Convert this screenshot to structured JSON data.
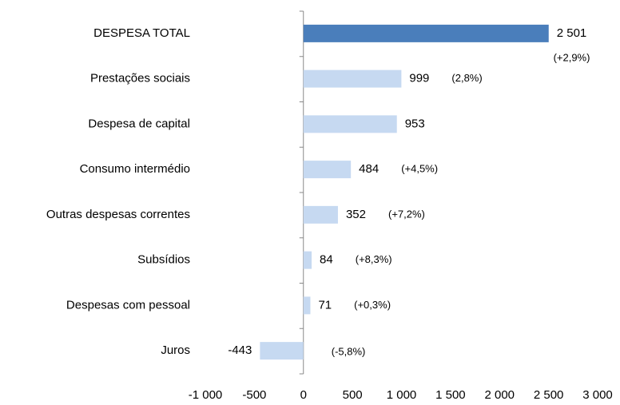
{
  "chart_data": {
    "type": "hbar",
    "categories": [
      "DESPESA TOTAL",
      "Prestações sociais",
      "Despesa de capital",
      "Consumo intermédio",
      "Outras despesas correntes",
      "Subsídios",
      "Despesas com pessoal",
      "Juros"
    ],
    "values": [
      2501,
      999,
      953,
      484,
      352,
      84,
      71,
      -443
    ],
    "value_labels": [
      "2 501",
      "999",
      "953",
      "484",
      "352",
      "84",
      "71",
      "-443"
    ],
    "annotations": [
      "(+2,9%)",
      "(2,8%)",
      null,
      "(+4,5%)",
      "(+7,2%)",
      "(+8,3%)",
      "(+0,3%)",
      "(-5,8%)"
    ],
    "colors": [
      "#4a7ebb",
      "#c6d9f1",
      "#c6d9f1",
      "#c6d9f1",
      "#c6d9f1",
      "#c6d9f1",
      "#c6d9f1",
      "#c6d9f1"
    ],
    "xlim": [
      -1000,
      3000
    ],
    "xticks": [
      {
        "value": -1000,
        "label": "-1 000"
      },
      -500,
      0,
      500,
      {
        "value": 1000,
        "label": "1 000"
      },
      {
        "value": 1500,
        "label": "1 500"
      },
      {
        "value": 2000,
        "label": "2 000"
      },
      {
        "value": 2500,
        "label": "2 500"
      },
      {
        "value": 3000,
        "label": "3 000"
      }
    ],
    "grid": false
  }
}
